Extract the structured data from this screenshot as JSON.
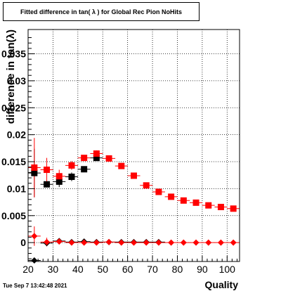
{
  "title": "Fitted difference in tan( λ ) for Global Rec Pion NoHits",
  "footer": "Tue Sep  7 13:42:48 2021",
  "chart_data": {
    "type": "scatter",
    "xlabel": "Quality",
    "ylabel": "difference in tan(λ)",
    "xlim": [
      20,
      105
    ],
    "ylim": [
      -0.0035,
      0.0395
    ],
    "xticks": [
      20,
      30,
      40,
      50,
      60,
      70,
      80,
      90,
      100
    ],
    "yticks": [
      0,
      0.005,
      0.01,
      0.015,
      0.02,
      0.025,
      0.03,
      0.035
    ],
    "ytick_labels": [
      "0",
      "0.005",
      "0.01",
      "0.015",
      "0.02",
      "0.025",
      "0.03",
      "0.035"
    ],
    "grid": true,
    "series": [
      {
        "marker": "square",
        "color": "#000000",
        "x": [
          22.5,
          27.5,
          32.5,
          37.5,
          42.5,
          47.5
        ],
        "y": [
          0.0129,
          0.0108,
          0.0113,
          0.0122,
          0.0136,
          0.0157
        ],
        "yerr": [
          0.0045,
          0.0,
          0.001,
          0.0008,
          0.0,
          0.0
        ]
      },
      {
        "marker": "square",
        "color": "#ff0000",
        "x": [
          22.5,
          27.5,
          32.5,
          37.5,
          42.5,
          47.5,
          52.5,
          57.5,
          62.5,
          67.5,
          72.5,
          77.5,
          82.5,
          87.5,
          92.5,
          97.5,
          102.5
        ],
        "y": [
          0.0139,
          0.0135,
          0.0123,
          0.0143,
          0.0157,
          0.0165,
          0.0156,
          0.0142,
          0.0124,
          0.0106,
          0.0094,
          0.0085,
          0.0078,
          0.0074,
          0.0069,
          0.0066,
          0.0063
        ],
        "yerr": [
          0.0055,
          0.0022,
          0.0012,
          0.0008,
          0.0,
          0.0006,
          0.0005,
          0.0004,
          0.0,
          0.0,
          0.0,
          0.0,
          0.0,
          0.0,
          0.0,
          0.0,
          0.0
        ]
      },
      {
        "marker": "diamond",
        "color": "#000000",
        "x": [
          22.5,
          27.5,
          32.5,
          37.5,
          42.5,
          47.5,
          52.5,
          57.5,
          62.5,
          67.5,
          72.5
        ],
        "y": [
          -0.0033,
          -0.0001,
          0.0003,
          0.0001,
          0.0002,
          0.0001,
          0.0001,
          0.0001,
          0.0001,
          0.0001,
          0.0001
        ],
        "yerr": [
          0.0,
          0.0,
          0.0,
          0.0,
          0.0,
          0.0,
          0.0,
          0.0,
          0.0,
          0.0,
          0.0
        ]
      },
      {
        "marker": "diamond",
        "color": "#ff0000",
        "x": [
          22.5,
          27.5,
          32.5,
          37.5,
          42.5,
          47.5,
          52.5,
          57.5,
          62.5,
          67.5,
          72.5,
          77.5,
          82.5,
          87.5,
          92.5,
          97.5,
          102.5
        ],
        "y": [
          0.0012,
          0.0001,
          0.0002,
          0.0,
          0.0,
          0.0,
          0.0001,
          0.0,
          0.0,
          0.0,
          0.0,
          0.0,
          0.0,
          0.0,
          0.0,
          0.0,
          0.0
        ],
        "yerr": [
          0.0018,
          0.0008,
          0.0004,
          0.0,
          0.0,
          0.0,
          0.0,
          0.0,
          0.0,
          0.0,
          0.0,
          0.0,
          0.0,
          0.0,
          0.0,
          0.0,
          0.0
        ]
      }
    ]
  }
}
